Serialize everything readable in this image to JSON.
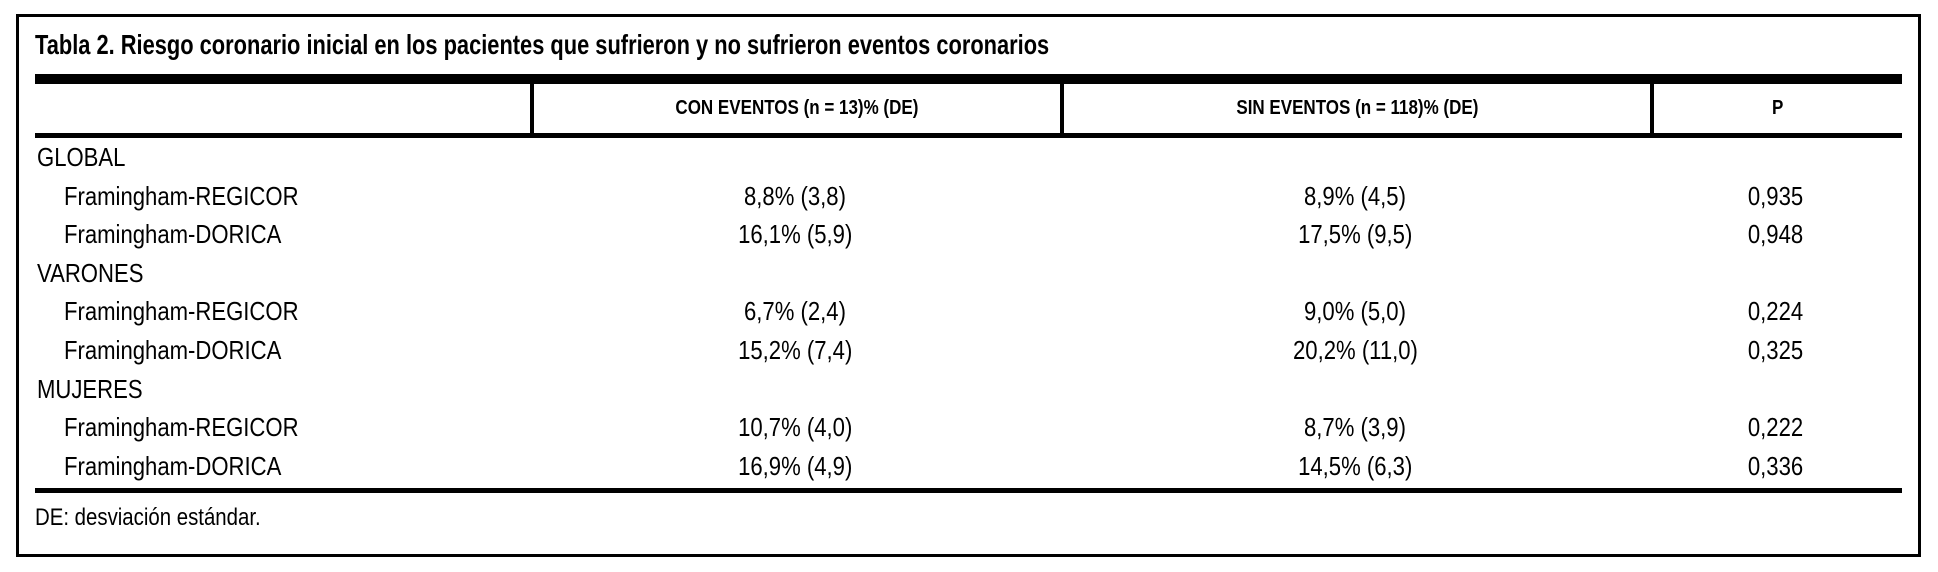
{
  "table": {
    "title": "Tabla 2. Riesgo coronario inicial en los pacientes que sufrieron y no sufrieron eventos coronarios",
    "columns": [
      "",
      "CON EVENTOS (n = 13)% (DE)",
      "SIN EVENTOS (n = 118)% (DE)",
      "P"
    ],
    "sections": [
      {
        "label": "GLOBAL",
        "rows": [
          {
            "label": "Framingham-REGICOR",
            "con_eventos": "8,8% (3,8)",
            "sin_eventos": "8,9% (4,5)",
            "p": "0,935"
          },
          {
            "label": "Framingham-DORICA",
            "con_eventos": "16,1% (5,9)",
            "sin_eventos": "17,5% (9,5)",
            "p": "0,948"
          }
        ]
      },
      {
        "label": "VARONES",
        "rows": [
          {
            "label": "Framingham-REGICOR",
            "con_eventos": "6,7% (2,4)",
            "sin_eventos": "9,0% (5,0)",
            "p": "0,224"
          },
          {
            "label": "Framingham-DORICA",
            "con_eventos": "15,2% (7,4)",
            "sin_eventos": "20,2% (11,0)",
            "p": "0,325"
          }
        ]
      },
      {
        "label": "MUJERES",
        "rows": [
          {
            "label": "Framingham-REGICOR",
            "con_eventos": "10,7% (4,0)",
            "sin_eventos": "8,7% (3,9)",
            "p": "0,222"
          },
          {
            "label": "Framingham-DORICA",
            "con_eventos": "16,9% (4,9)",
            "sin_eventos": "14,5% (6,3)",
            "p": "0,336"
          }
        ]
      }
    ],
    "footnote": "DE: desviación estándar.",
    "colors": {
      "text": "#000000",
      "background": "#ffffff",
      "border": "#000000"
    }
  }
}
